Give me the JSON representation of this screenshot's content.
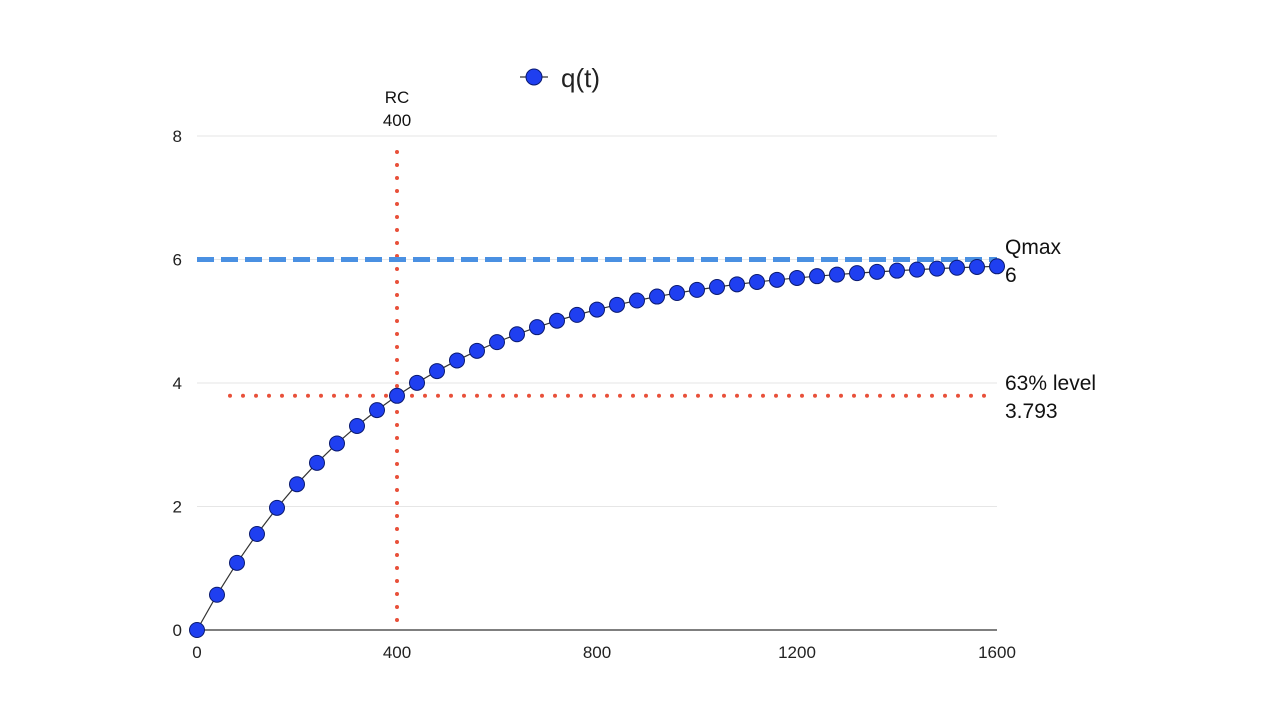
{
  "chart_data": {
    "type": "line",
    "title": "",
    "xlabel": "",
    "ylabel": "",
    "xlim": [
      0,
      1600
    ],
    "ylim": [
      0,
      8
    ],
    "x_ticks": [
      "0",
      "400",
      "800",
      "1200",
      "1600"
    ],
    "y_ticks": [
      "0",
      "2",
      "4",
      "6",
      "8"
    ],
    "grid": "horizontal",
    "legend": {
      "placement": "top-center"
    },
    "series": [
      {
        "name": "q(t)",
        "color": "#1f3ff0",
        "x": [
          0,
          40,
          80,
          120,
          160,
          200,
          240,
          280,
          320,
          360,
          400,
          440,
          480,
          520,
          560,
          600,
          640,
          680,
          720,
          760,
          800,
          840,
          880,
          920,
          960,
          1000,
          1040,
          1080,
          1120,
          1160,
          1200,
          1240,
          1280,
          1320,
          1360,
          1400,
          1440,
          1480,
          1520,
          1560,
          1600
        ],
        "y": [
          0,
          0.571,
          1.088,
          1.555,
          1.978,
          2.361,
          2.707,
          3.021,
          3.304,
          3.561,
          3.793,
          4.003,
          4.193,
          4.365,
          4.521,
          4.662,
          4.789,
          4.904,
          5.009,
          5.103,
          5.189,
          5.266,
          5.336,
          5.4,
          5.457,
          5.508,
          5.555,
          5.598,
          5.636,
          5.671,
          5.701,
          5.73,
          5.756,
          5.779,
          5.8,
          5.819,
          5.836,
          5.852,
          5.866,
          5.879,
          5.89
        ]
      }
    ],
    "reference_lines": [
      {
        "orientation": "vertical",
        "x": 400,
        "label_name": "RC",
        "label_value": "400",
        "color": "#e8503a",
        "style": "dotted"
      },
      {
        "orientation": "horizontal",
        "y": 6,
        "label_name": "Qmax",
        "label_value": "6",
        "color": "#4a90e2",
        "style": "dashed"
      },
      {
        "orientation": "horizontal",
        "y": 3.793,
        "label_name": "63% level",
        "label_value": "3.793",
        "color": "#e8503a",
        "style": "dotted"
      }
    ]
  }
}
